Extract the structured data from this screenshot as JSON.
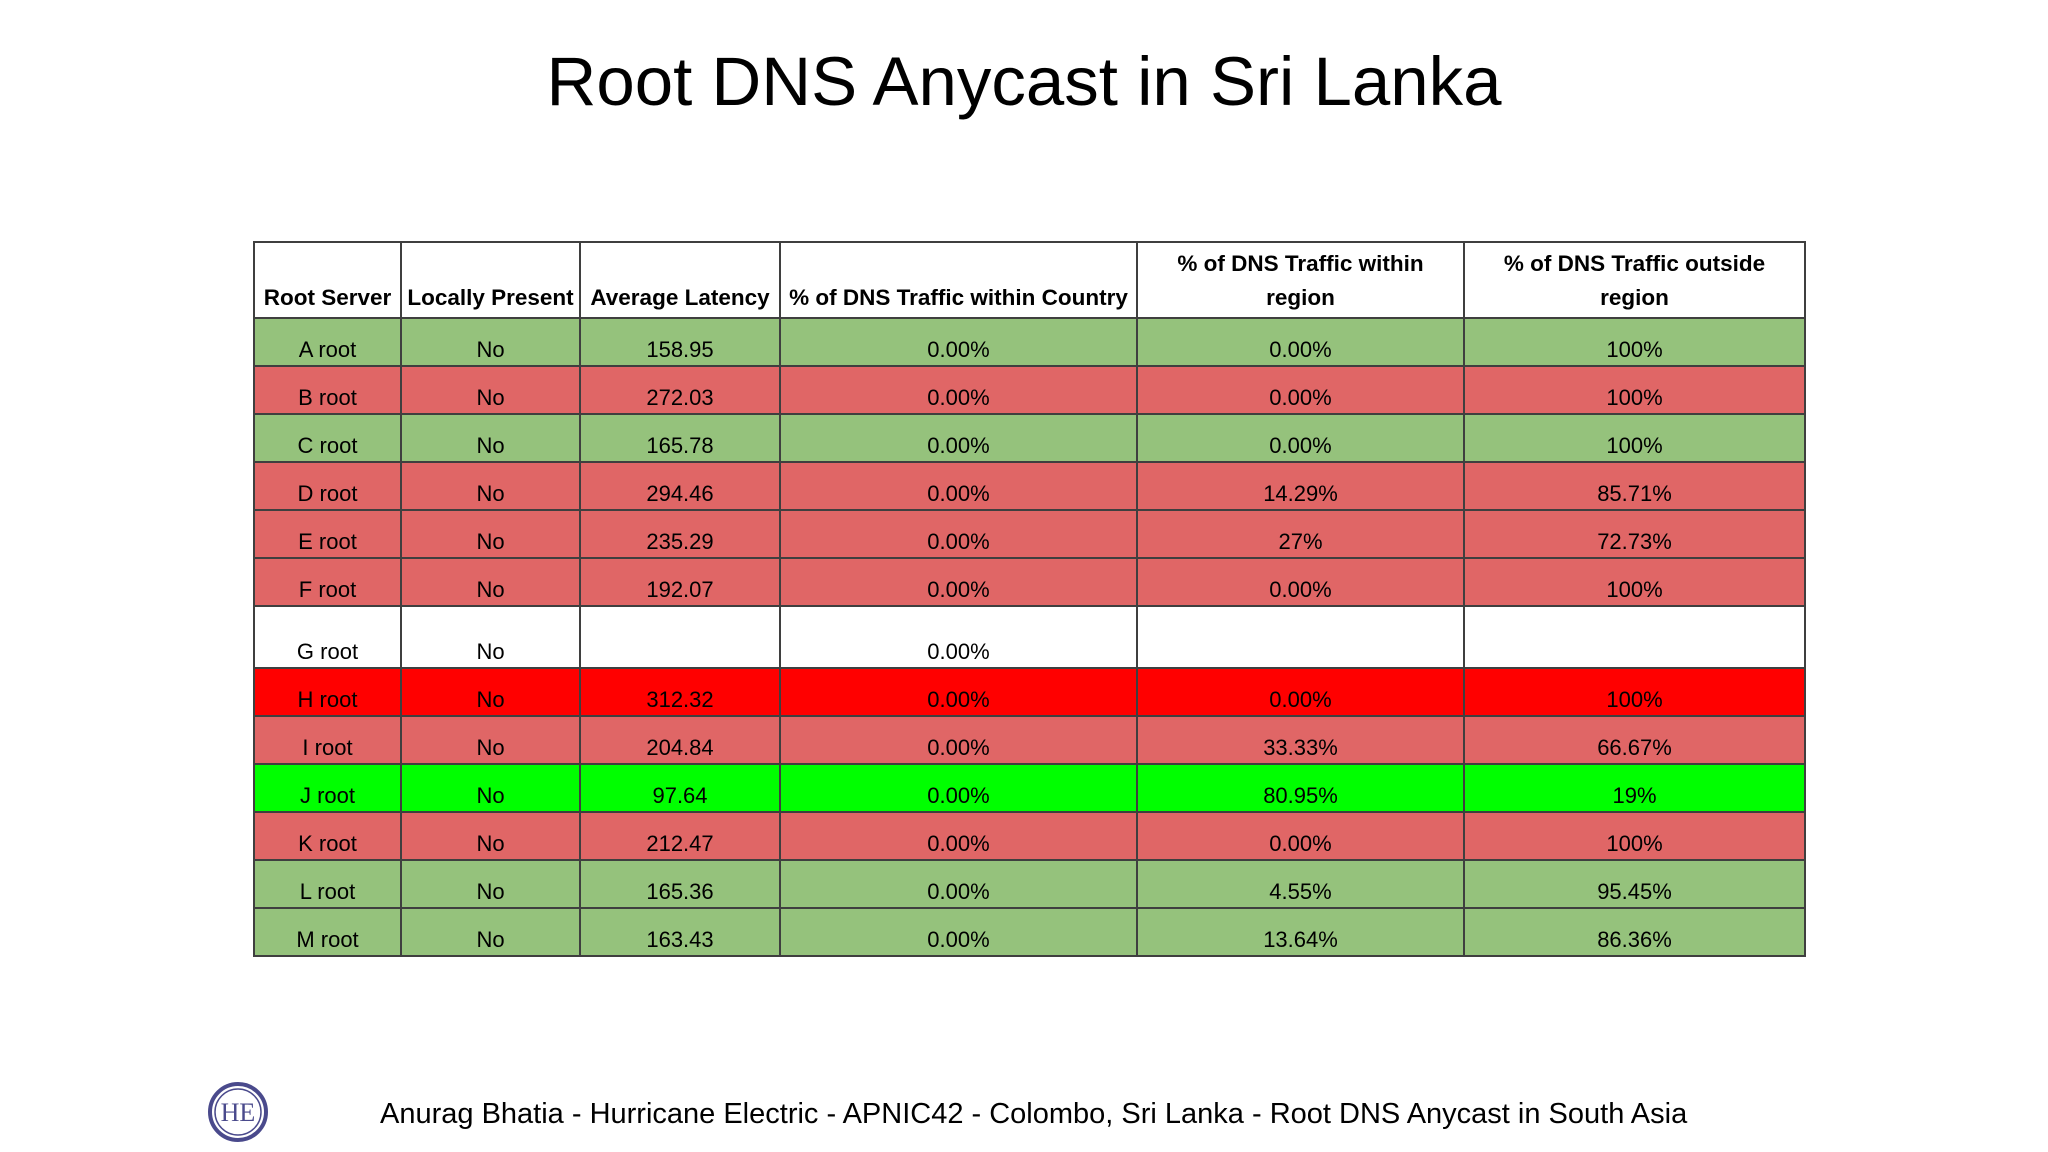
{
  "slide": {
    "title": "Root DNS Anycast in Sri Lanka",
    "footer": "Anurag Bhatia - Hurricane Electric - APNIC42 - Colombo, Sri Lanka - Root DNS Anycast in South Asia",
    "logo_text": "HE"
  },
  "colors": {
    "light_green": "#95c27c",
    "light_red": "#e06666",
    "bright_red": "#ff0000",
    "bright_green": "#00ff00",
    "white": "#ffffff"
  },
  "table": {
    "headers": [
      "Root Server",
      "Locally Present",
      "Average Latency",
      "% of DNS Traffic within Country",
      "% of DNS Traffic within region",
      "% of DNS Traffic outside region"
    ],
    "rows": [
      {
        "color": "#95c27c",
        "cells": [
          "A root",
          "No",
          "158.95",
          "0.00%",
          "0.00%",
          "100%"
        ]
      },
      {
        "color": "#e06666",
        "cells": [
          "B root",
          "No",
          "272.03",
          "0.00%",
          "0.00%",
          "100%"
        ]
      },
      {
        "color": "#95c27c",
        "cells": [
          "C root",
          "No",
          "165.78",
          "0.00%",
          "0.00%",
          "100%"
        ]
      },
      {
        "color": "#e06666",
        "cells": [
          "D root",
          "No",
          "294.46",
          "0.00%",
          "14.29%",
          "85.71%"
        ]
      },
      {
        "color": "#e06666",
        "cells": [
          "E root",
          "No",
          "235.29",
          "0.00%",
          "27%",
          "72.73%"
        ]
      },
      {
        "color": "#e06666",
        "cells": [
          "F root",
          "No",
          "192.07",
          "0.00%",
          "0.00%",
          "100%"
        ]
      },
      {
        "color": "#ffffff",
        "tall": true,
        "cells": [
          "G root",
          "No",
          "",
          "0.00%",
          "",
          ""
        ]
      },
      {
        "color": "#ff0000",
        "cells": [
          "H root",
          "No",
          "312.32",
          "0.00%",
          "0.00%",
          "100%"
        ]
      },
      {
        "color": "#e06666",
        "cells": [
          "I root",
          "No",
          "204.84",
          "0.00%",
          "33.33%",
          "66.67%"
        ]
      },
      {
        "color": "#00ff00",
        "cells": [
          "J root",
          "No",
          "97.64",
          "0.00%",
          "80.95%",
          "19%"
        ]
      },
      {
        "color": "#e06666",
        "cells": [
          "K root",
          "No",
          "212.47",
          "0.00%",
          "0.00%",
          "100%"
        ]
      },
      {
        "color": "#95c27c",
        "cells": [
          "L root",
          "No",
          "165.36",
          "0.00%",
          "4.55%",
          "95.45%"
        ]
      },
      {
        "color": "#95c27c",
        "cells": [
          "M root",
          "No",
          "163.43",
          "0.00%",
          "13.64%",
          "86.36%"
        ]
      }
    ]
  }
}
